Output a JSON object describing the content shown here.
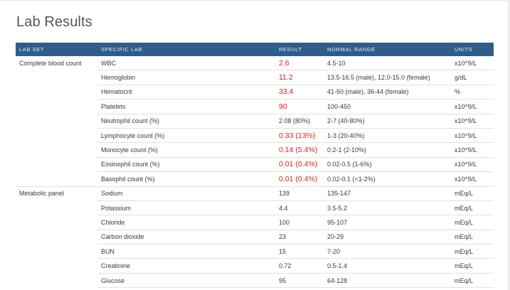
{
  "page": {
    "title": "Lab Results"
  },
  "table": {
    "headers": [
      "LAB SET",
      "SPECIFIC LAB",
      "RESULT",
      "NORMAL RANGE",
      "UNITS"
    ],
    "rows": [
      {
        "set": "Complete blood count",
        "lab": "WBC",
        "result": "2.6",
        "range": "4.5-10",
        "units": "x10^9/L",
        "abnormal": true
      },
      {
        "set": "",
        "lab": "Hemoglobin",
        "result": "11.2",
        "range": "13.5-16.5 (male), 12.0-15.0 (female)",
        "units": "g/dL",
        "abnormal": true
      },
      {
        "set": "",
        "lab": "Hematocrit",
        "result": "33.4",
        "range": "41-50 (male), 36-44 (female)",
        "units": "%",
        "abnormal": true
      },
      {
        "set": "",
        "lab": "Platelets",
        "result": "90",
        "range": "100-450",
        "units": "x10^9/L",
        "abnormal": true
      },
      {
        "set": "",
        "lab": "Neutrophil count (%)",
        "result": "2.08 (80%)",
        "range": "2-7 (40-80%)",
        "units": "x10^9/L",
        "abnormal": false
      },
      {
        "set": "",
        "lab": "Lymphocyte count (%)",
        "result": "0.33 (13%)",
        "range": "1-3 (20-40%)",
        "units": "x10^9/L",
        "abnormal": true
      },
      {
        "set": "",
        "lab": "Monocyte count (%)",
        "result": "0.14 (5.4%)",
        "range": "0.2-1 (2-10%)",
        "units": "x10^9/L",
        "abnormal": true
      },
      {
        "set": "",
        "lab": "Eosinophil count (%)",
        "result": "0.01 (0.4%)",
        "range": "0.02-0.5 (1-6%)",
        "units": "x10^9/L",
        "abnormal": true
      },
      {
        "set": "",
        "lab": "Basophil count (%)",
        "result": "0.01 (0.4%)",
        "range": "0.02-0.1 (<1-2%)",
        "units": "x10^9/L",
        "abnormal": true,
        "group_end": true
      },
      {
        "set": "Metabolic panel",
        "lab": "Sodium",
        "result": "139",
        "range": "135-147",
        "units": "mEq/L",
        "abnormal": false
      },
      {
        "set": "",
        "lab": "Potassium",
        "result": "4.4",
        "range": "3.5-5.2",
        "units": "mEq/L",
        "abnormal": false
      },
      {
        "set": "",
        "lab": "Chloride",
        "result": "100",
        "range": "95-107",
        "units": "mEq/L",
        "abnormal": false
      },
      {
        "set": "",
        "lab": "Carbon dioxide",
        "result": "23",
        "range": "20-29",
        "units": "mEq/L",
        "abnormal": false
      },
      {
        "set": "",
        "lab": "BUN",
        "result": "15",
        "range": "7-20",
        "units": "mEq/L",
        "abnormal": false
      },
      {
        "set": "",
        "lab": "Creatinine",
        "result": "0.72",
        "range": "0.5-1.4",
        "units": "mEq/L",
        "abnormal": false
      },
      {
        "set": "",
        "lab": "Glucose",
        "result": "95",
        "range": "64-128",
        "units": "mEq/L",
        "abnormal": false
      }
    ]
  },
  "colors": {
    "header_bg": "#2f5d8a",
    "abnormal": "#e01818"
  }
}
